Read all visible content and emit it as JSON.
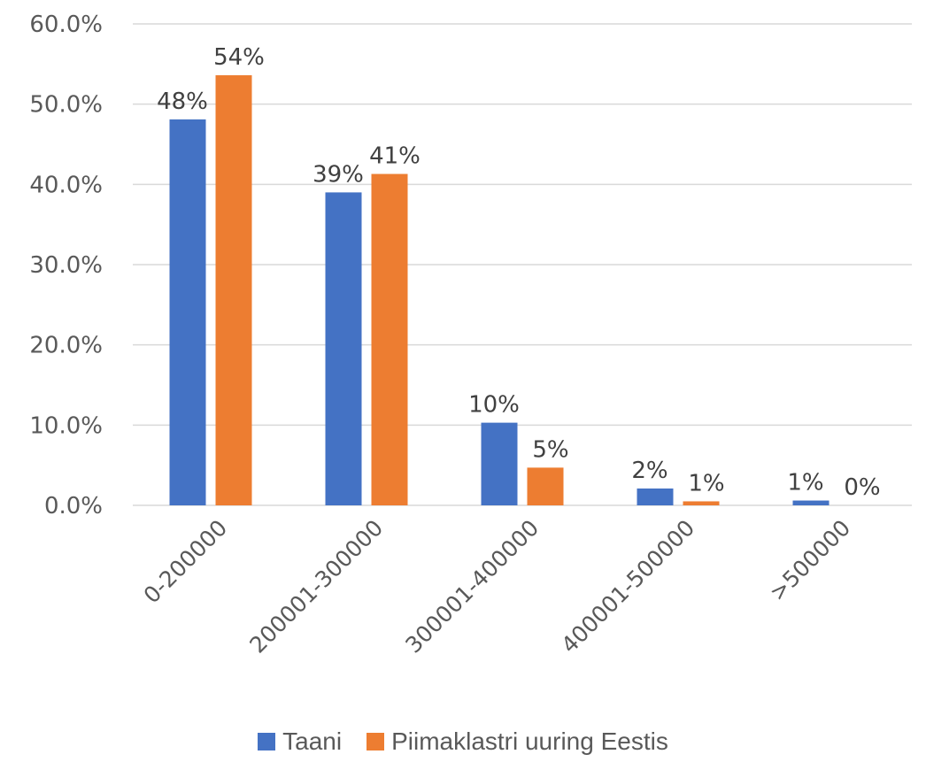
{
  "chart_data": {
    "type": "bar",
    "categories": [
      "0-200000",
      "200001-300000",
      "300001-400000",
      "400001-500000",
      ">500000"
    ],
    "series": [
      {
        "name": "Taani",
        "color": "#4472c4",
        "values": [
          48.1,
          39.0,
          10.3,
          2.1,
          0.6
        ],
        "labels": [
          "48%",
          "39%",
          "10%",
          "2%",
          "1%"
        ]
      },
      {
        "name": "Piimaklastri uuring Eestis",
        "color": "#ed7d31",
        "values": [
          53.6,
          41.3,
          4.7,
          0.5,
          0.0
        ],
        "labels": [
          "54%",
          "41%",
          "5%",
          "1%",
          "0%"
        ]
      }
    ],
    "ylim": [
      0,
      60
    ],
    "yticks": [
      {
        "value": 0,
        "label": "0.0%"
      },
      {
        "value": 10,
        "label": "10.0%"
      },
      {
        "value": 20,
        "label": "20.0%"
      },
      {
        "value": 30,
        "label": "30.0%"
      },
      {
        "value": 40,
        "label": "40.0%"
      },
      {
        "value": 50,
        "label": "50.0%"
      },
      {
        "value": 60,
        "label": "60.0%"
      }
    ],
    "grid": true,
    "legend_position": "bottom"
  }
}
